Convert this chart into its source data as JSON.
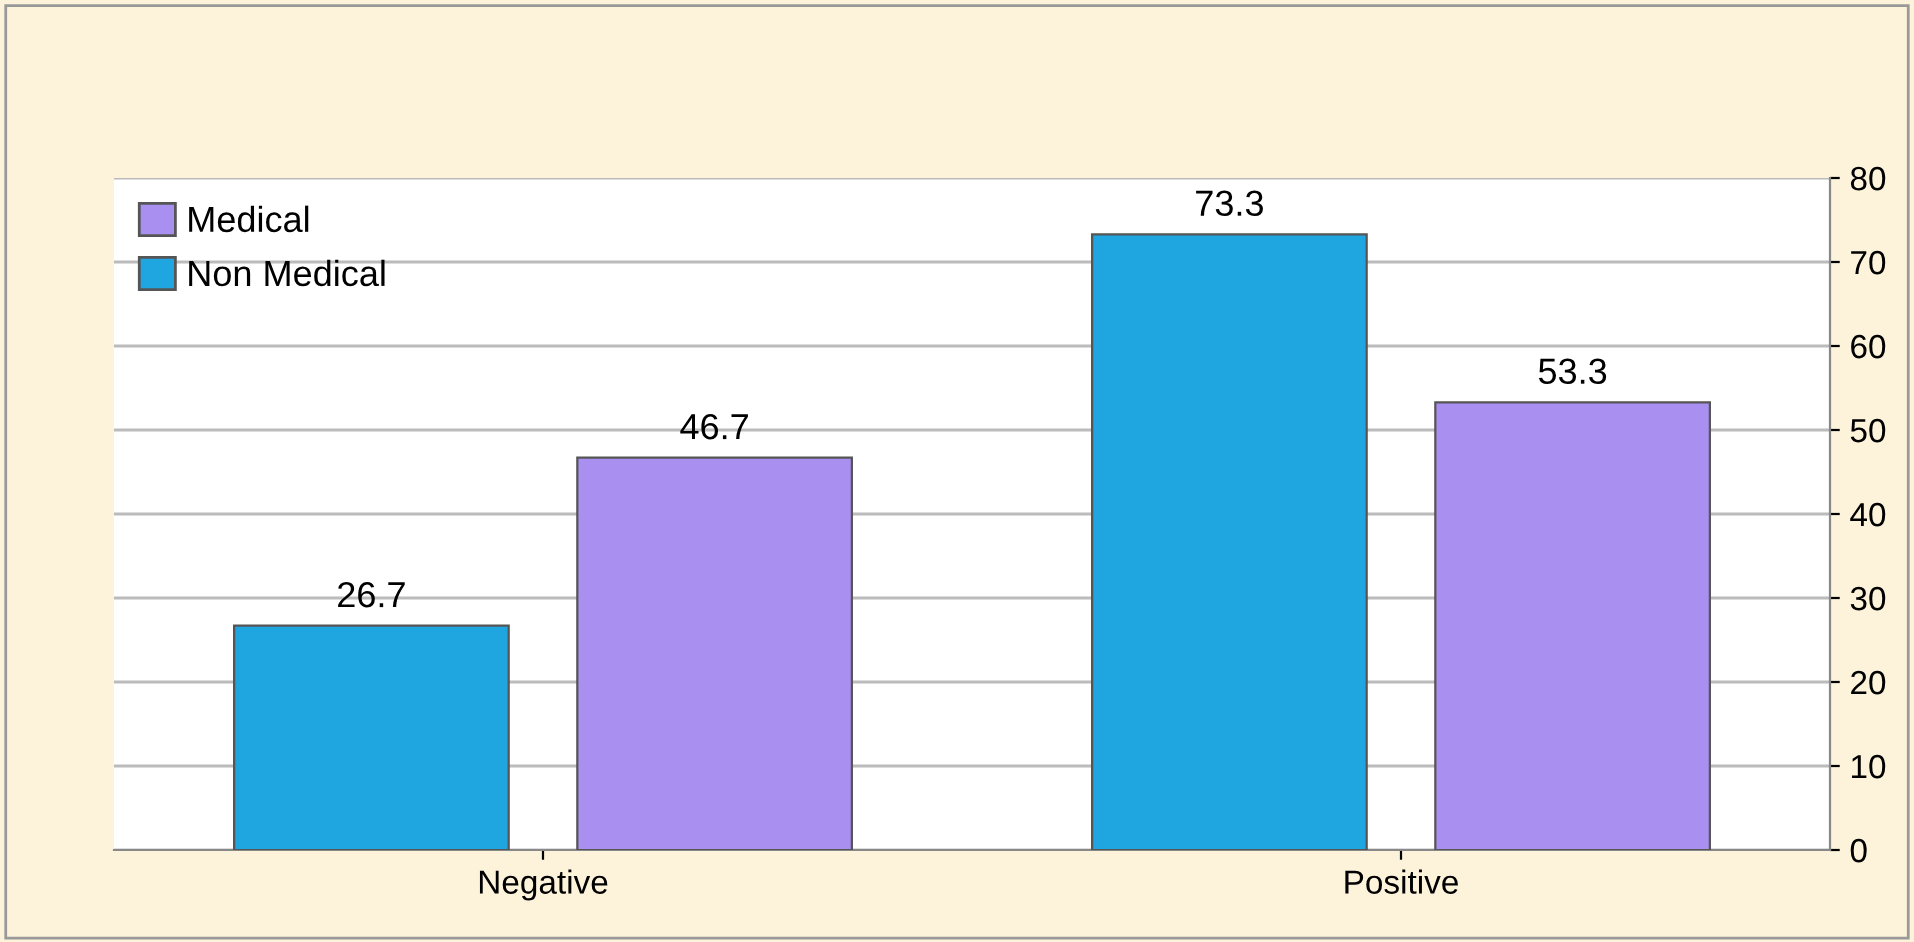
{
  "chart_data": {
    "type": "bar",
    "categories": [
      "Negative",
      "Positive"
    ],
    "series": [
      {
        "name": "Non Medical",
        "color": "#1fa6e0",
        "values": [
          26.7,
          73.3
        ]
      },
      {
        "name": "Medical",
        "color": "#a98ff0",
        "values": [
          46.7,
          53.3
        ]
      }
    ],
    "ylim": [
      0,
      80
    ],
    "yticks": [
      0,
      10,
      20,
      30,
      40,
      50,
      60,
      70,
      80
    ],
    "grid": "y",
    "legend": "top left",
    "data_labels": true
  }
}
